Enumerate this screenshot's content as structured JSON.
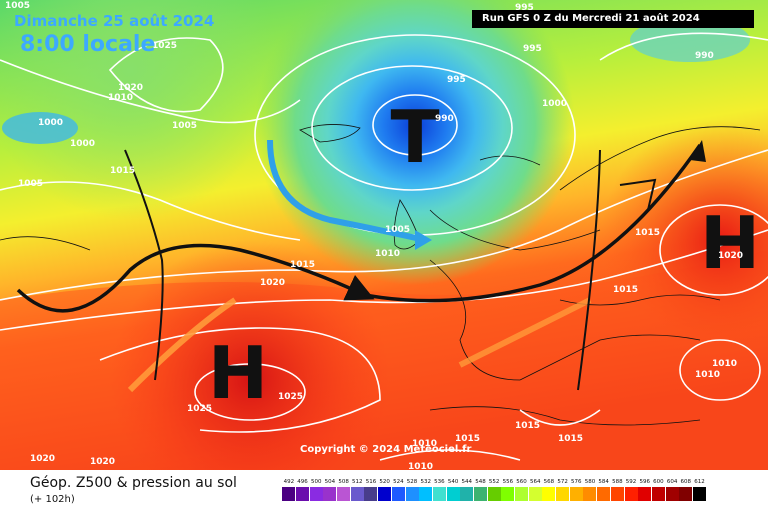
{
  "header": {
    "date": "Dimanche 25 août 2024",
    "local_time": "8:00 locale",
    "run": "Run GFS 0 Z du Mercredi 21 août 2024"
  },
  "map": {
    "pressure_systems": [
      {
        "letter": "T",
        "kind": "low"
      },
      {
        "letter": "H",
        "kind": "high"
      },
      {
        "letter": "H",
        "kind": "high"
      }
    ],
    "isobar_labels": [
      "1005",
      "1025",
      "1020",
      "1010",
      "1000",
      "1005",
      "1000",
      "1015",
      "1005",
      "995",
      "990",
      "995",
      "995",
      "1000",
      "990",
      "1005",
      "1010",
      "1015",
      "1020",
      "1015",
      "1015",
      "1020",
      "1010",
      "1010",
      "1025",
      "1025",
      "1020",
      "1020",
      "1010",
      "1015",
      "1010",
      "1015",
      "1015"
    ],
    "copyright": "Copyright © 2024 Meteociel.fr"
  },
  "footer": {
    "title": "Géop. Z500 & pression au sol",
    "subtitle": "(+ 102h)"
  },
  "scale": {
    "values": [
      "492",
      "496",
      "500",
      "504",
      "508",
      "512",
      "516",
      "520",
      "524",
      "528",
      "532",
      "536",
      "540",
      "544",
      "548",
      "552",
      "556",
      "560",
      "564",
      "568",
      "572",
      "576",
      "580",
      "584",
      "588",
      "592",
      "596",
      "600",
      "604",
      "608",
      "612"
    ],
    "colors": [
      "#4b0082",
      "#6a0dad",
      "#8a2be2",
      "#9932cc",
      "#ba55d3",
      "#6a5acd",
      "#483d8b",
      "#0000cd",
      "#1e5aff",
      "#1e90ff",
      "#00bfff",
      "#40e0d0",
      "#00ced1",
      "#20b2aa",
      "#3cb371",
      "#66cd00",
      "#7fff00",
      "#adff2f",
      "#d4ff2f",
      "#ffff00",
      "#ffd700",
      "#ffb000",
      "#ff8c00",
      "#ff6a00",
      "#ff4500",
      "#ff2000",
      "#e00000",
      "#c00000",
      "#a00000",
      "#800000",
      "#000000"
    ]
  }
}
